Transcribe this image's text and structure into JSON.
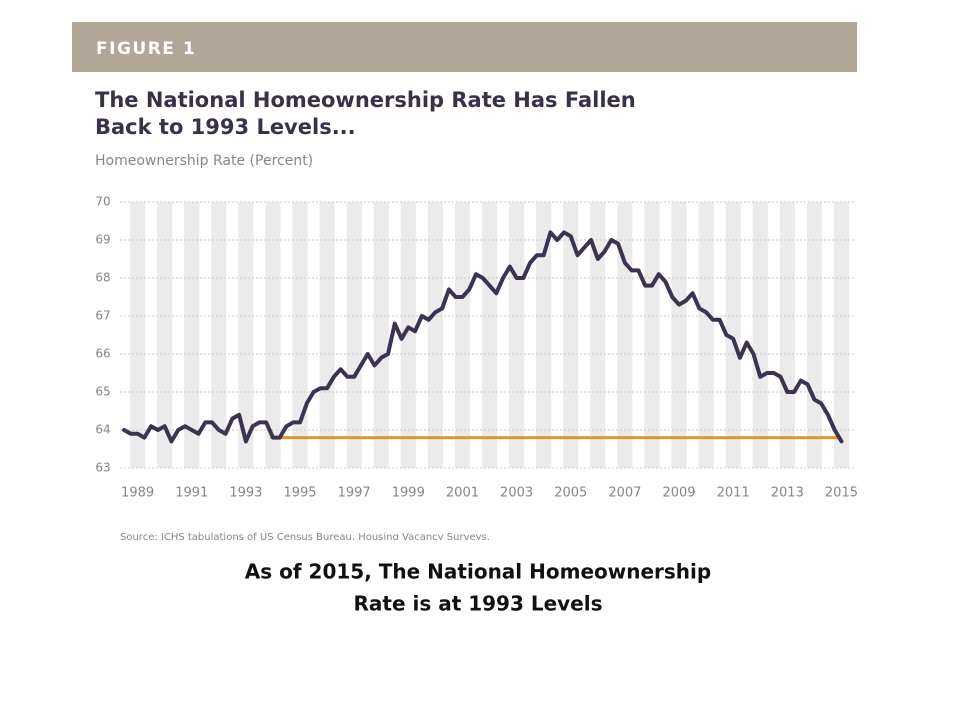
{
  "header": "FIGURE 1",
  "chart_data": {
    "type": "line",
    "title": [
      "The National Homeownership Rate Has Fallen",
      "Back to 1993 Levels..."
    ],
    "y_label": "Homeownership Rate (Percent)",
    "source": "Source: JCHS tabulations of US Census Bureau, Housing Vacancy Surveys.",
    "x": [
      1988.5,
      1988.75,
      1989,
      1989.25,
      1989.5,
      1989.75,
      1990,
      1990.25,
      1990.5,
      1990.75,
      1991,
      1991.25,
      1991.5,
      1991.75,
      1992,
      1992.25,
      1992.5,
      1992.75,
      1993,
      1993.25,
      1993.5,
      1993.75,
      1994,
      1994.25,
      1994.5,
      1994.75,
      1995,
      1995.25,
      1995.5,
      1995.75,
      1996,
      1996.25,
      1996.5,
      1996.75,
      1997,
      1997.25,
      1997.5,
      1997.75,
      1998,
      1998.25,
      1998.5,
      1998.75,
      1999,
      1999.25,
      1999.5,
      1999.75,
      2000,
      2000.25,
      2000.5,
      2000.75,
      2001,
      2001.25,
      2001.5,
      2001.75,
      2002,
      2002.25,
      2002.5,
      2002.75,
      2003,
      2003.25,
      2003.5,
      2003.75,
      2004,
      2004.25,
      2004.5,
      2004.75,
      2005,
      2005.25,
      2005.5,
      2005.75,
      2006,
      2006.25,
      2006.5,
      2006.75,
      2007,
      2007.25,
      2007.5,
      2007.75,
      2008,
      2008.25,
      2008.5,
      2008.75,
      2009,
      2009.25,
      2009.5,
      2009.75,
      2010,
      2010.25,
      2010.5,
      2010.75,
      2011,
      2011.25,
      2011.5,
      2011.75,
      2012,
      2012.25,
      2012.5,
      2012.75,
      2013,
      2013.25,
      2013.5,
      2013.75,
      2014,
      2014.25,
      2014.5,
      2014.75,
      2015
    ],
    "values": [
      64.0,
      63.9,
      63.9,
      63.8,
      64.1,
      64.0,
      64.1,
      63.7,
      64.0,
      64.1,
      64.0,
      63.9,
      64.2,
      64.2,
      64.0,
      63.9,
      64.3,
      64.4,
      63.7,
      64.1,
      64.2,
      64.2,
      63.8,
      63.8,
      64.1,
      64.2,
      64.2,
      64.7,
      65.0,
      65.1,
      65.1,
      65.4,
      65.6,
      65.4,
      65.4,
      65.7,
      66.0,
      65.7,
      65.9,
      66.0,
      66.8,
      66.4,
      66.7,
      66.6,
      67.0,
      66.9,
      67.1,
      67.2,
      67.7,
      67.5,
      67.5,
      67.7,
      68.1,
      68.0,
      67.8,
      67.6,
      68.0,
      68.3,
      68.0,
      68.0,
      68.4,
      68.6,
      68.6,
      69.2,
      69.0,
      69.2,
      69.1,
      68.6,
      68.8,
      69.0,
      68.5,
      68.7,
      69.0,
      68.9,
      68.4,
      68.2,
      68.2,
      67.8,
      67.8,
      68.1,
      67.9,
      67.5,
      67.3,
      67.4,
      67.6,
      67.2,
      67.1,
      66.9,
      66.9,
      66.5,
      66.4,
      65.9,
      66.3,
      66.0,
      65.4,
      65.5,
      65.5,
      65.4,
      65.0,
      65.0,
      65.3,
      65.2,
      64.8,
      64.7,
      64.4,
      64.0,
      63.7
    ],
    "color": "#3d3250",
    "reference_line": {
      "value": 63.8,
      "x": [
        1993.9,
        2014.85
      ],
      "color": "#e8961e"
    },
    "xlim": [
      1988.35,
      2015.5
    ],
    "xticks": [
      1989,
      1991,
      1993,
      1995,
      1997,
      1999,
      2001,
      2003,
      2005,
      2007,
      2009,
      2011,
      2013,
      2015
    ],
    "ylim": [
      63,
      70
    ],
    "yticks": [
      63,
      64,
      65,
      66,
      67,
      68,
      69,
      70
    ],
    "grid": true
  },
  "caption": [
    "As of 2015, The National Homeownership",
    "Rate is at 1993 Levels"
  ]
}
